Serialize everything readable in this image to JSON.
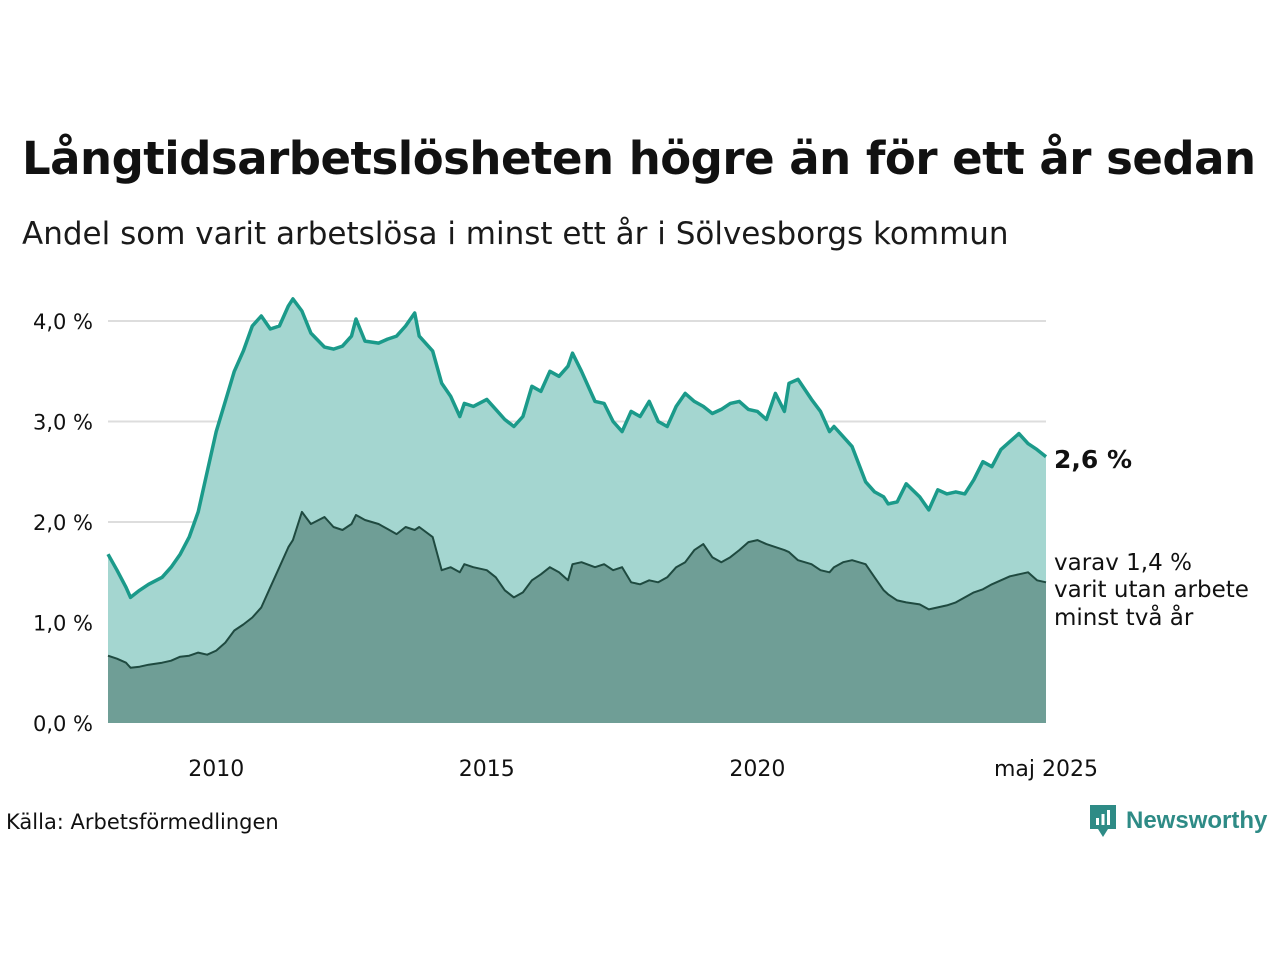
{
  "title": "Långtidsarbetslösheten högre än för ett år sedan",
  "subtitle": "Andel som varit arbetslösa i minst ett år i Sölvesborgs kommun",
  "source": "Källa: Arbetsförmedlingen",
  "brand": "Newsworthy",
  "end_labels": {
    "main": "2,6 %",
    "sub_lines": [
      "varav 1,4 %",
      "varit utan arbete",
      "minst två år"
    ]
  },
  "colors": {
    "main_line": "#1b9a8a",
    "main_fill": "#a4d6d0",
    "sub_line": "#1f4a40",
    "sub_fill": "#6f9e96",
    "grid": "#dddddd",
    "brand": "#2e8b86"
  },
  "chart_data": {
    "type": "area",
    "x_start": "2008-01",
    "x_end": "2025-05",
    "x_ticks": [
      {
        "label": "2010",
        "date": "2010-01"
      },
      {
        "label": "2015",
        "date": "2015-01"
      },
      {
        "label": "2020",
        "date": "2020-01"
      },
      {
        "label": "maj 2025",
        "date": "2025-05"
      }
    ],
    "y_ticks": [
      {
        "label": "0,0 %",
        "value": 0
      },
      {
        "label": "1,0 %",
        "value": 1
      },
      {
        "label": "2,0 %",
        "value": 2
      },
      {
        "label": "3,0 %",
        "value": 3
      },
      {
        "label": "4,0 %",
        "value": 4
      }
    ],
    "ylim": [
      0,
      4.4
    ],
    "grid": true,
    "series": [
      {
        "points": [
          [
            "2008-01",
            1.68
          ],
          [
            "2008-03",
            1.52
          ],
          [
            "2008-05",
            1.35
          ],
          [
            "2008-06",
            1.25
          ],
          [
            "2008-08",
            1.32
          ],
          [
            "2008-10",
            1.38
          ],
          [
            "2009-01",
            1.45
          ],
          [
            "2009-03",
            1.55
          ],
          [
            "2009-05",
            1.68
          ],
          [
            "2009-07",
            1.85
          ],
          [
            "2009-09",
            2.1
          ],
          [
            "2009-11",
            2.5
          ],
          [
            "2010-01",
            2.9
          ],
          [
            "2010-03",
            3.2
          ],
          [
            "2010-05",
            3.5
          ],
          [
            "2010-07",
            3.7
          ],
          [
            "2010-09",
            3.95
          ],
          [
            "2010-11",
            4.05
          ],
          [
            "2011-01",
            3.92
          ],
          [
            "2011-03",
            3.95
          ],
          [
            "2011-05",
            4.15
          ],
          [
            "2011-06",
            4.22
          ],
          [
            "2011-08",
            4.1
          ],
          [
            "2011-10",
            3.88
          ],
          [
            "2012-01",
            3.74
          ],
          [
            "2012-03",
            3.72
          ],
          [
            "2012-05",
            3.75
          ],
          [
            "2012-07",
            3.85
          ],
          [
            "2012-08",
            4.02
          ],
          [
            "2012-10",
            3.8
          ],
          [
            "2013-01",
            3.78
          ],
          [
            "2013-03",
            3.82
          ],
          [
            "2013-05",
            3.85
          ],
          [
            "2013-07",
            3.95
          ],
          [
            "2013-09",
            4.08
          ],
          [
            "2013-10",
            3.85
          ],
          [
            "2014-01",
            3.7
          ],
          [
            "2014-03",
            3.38
          ],
          [
            "2014-05",
            3.25
          ],
          [
            "2014-07",
            3.05
          ],
          [
            "2014-08",
            3.18
          ],
          [
            "2014-10",
            3.15
          ],
          [
            "2015-01",
            3.22
          ],
          [
            "2015-03",
            3.12
          ],
          [
            "2015-05",
            3.02
          ],
          [
            "2015-07",
            2.95
          ],
          [
            "2015-09",
            3.05
          ],
          [
            "2015-11",
            3.35
          ],
          [
            "2016-01",
            3.3
          ],
          [
            "2016-03",
            3.5
          ],
          [
            "2016-05",
            3.45
          ],
          [
            "2016-07",
            3.55
          ],
          [
            "2016-08",
            3.68
          ],
          [
            "2016-10",
            3.5
          ],
          [
            "2017-01",
            3.2
          ],
          [
            "2017-03",
            3.18
          ],
          [
            "2017-05",
            3.0
          ],
          [
            "2017-07",
            2.9
          ],
          [
            "2017-09",
            3.1
          ],
          [
            "2017-11",
            3.05
          ],
          [
            "2018-01",
            3.2
          ],
          [
            "2018-03",
            3.0
          ],
          [
            "2018-05",
            2.95
          ],
          [
            "2018-07",
            3.15
          ],
          [
            "2018-09",
            3.28
          ],
          [
            "2018-11",
            3.2
          ],
          [
            "2019-01",
            3.15
          ],
          [
            "2019-03",
            3.08
          ],
          [
            "2019-05",
            3.12
          ],
          [
            "2019-07",
            3.18
          ],
          [
            "2019-09",
            3.2
          ],
          [
            "2019-11",
            3.12
          ],
          [
            "2020-01",
            3.1
          ],
          [
            "2020-03",
            3.02
          ],
          [
            "2020-05",
            3.28
          ],
          [
            "2020-07",
            3.1
          ],
          [
            "2020-08",
            3.38
          ],
          [
            "2020-10",
            3.42
          ],
          [
            "2021-01",
            3.22
          ],
          [
            "2021-03",
            3.1
          ],
          [
            "2021-05",
            2.9
          ],
          [
            "2021-06",
            2.95
          ],
          [
            "2021-08",
            2.85
          ],
          [
            "2021-10",
            2.75
          ],
          [
            "2022-01",
            2.4
          ],
          [
            "2022-03",
            2.3
          ],
          [
            "2022-05",
            2.25
          ],
          [
            "2022-06",
            2.18
          ],
          [
            "2022-08",
            2.2
          ],
          [
            "2022-10",
            2.38
          ],
          [
            "2023-01",
            2.25
          ],
          [
            "2023-03",
            2.12
          ],
          [
            "2023-05",
            2.32
          ],
          [
            "2023-07",
            2.28
          ],
          [
            "2023-09",
            2.3
          ],
          [
            "2023-11",
            2.28
          ],
          [
            "2024-01",
            2.42
          ],
          [
            "2024-03",
            2.6
          ],
          [
            "2024-05",
            2.55
          ],
          [
            "2024-07",
            2.72
          ],
          [
            "2024-09",
            2.8
          ],
          [
            "2024-11",
            2.88
          ],
          [
            "2025-01",
            2.78
          ],
          [
            "2025-03",
            2.72
          ],
          [
            "2025-05",
            2.65
          ]
        ]
      },
      {
        "points": [
          [
            "2008-01",
            0.67
          ],
          [
            "2008-03",
            0.64
          ],
          [
            "2008-05",
            0.6
          ],
          [
            "2008-06",
            0.55
          ],
          [
            "2008-08",
            0.56
          ],
          [
            "2008-10",
            0.58
          ],
          [
            "2009-01",
            0.6
          ],
          [
            "2009-03",
            0.62
          ],
          [
            "2009-05",
            0.66
          ],
          [
            "2009-07",
            0.67
          ],
          [
            "2009-09",
            0.7
          ],
          [
            "2009-11",
            0.68
          ],
          [
            "2010-01",
            0.72
          ],
          [
            "2010-03",
            0.8
          ],
          [
            "2010-05",
            0.92
          ],
          [
            "2010-07",
            0.98
          ],
          [
            "2010-09",
            1.05
          ],
          [
            "2010-11",
            1.15
          ],
          [
            "2011-01",
            1.35
          ],
          [
            "2011-03",
            1.55
          ],
          [
            "2011-05",
            1.75
          ],
          [
            "2011-06",
            1.82
          ],
          [
            "2011-08",
            2.1
          ],
          [
            "2011-10",
            1.98
          ],
          [
            "2012-01",
            2.05
          ],
          [
            "2012-03",
            1.95
          ],
          [
            "2012-05",
            1.92
          ],
          [
            "2012-07",
            1.98
          ],
          [
            "2012-08",
            2.07
          ],
          [
            "2012-10",
            2.02
          ],
          [
            "2013-01",
            1.98
          ],
          [
            "2013-03",
            1.93
          ],
          [
            "2013-05",
            1.88
          ],
          [
            "2013-07",
            1.95
          ],
          [
            "2013-09",
            1.92
          ],
          [
            "2013-10",
            1.95
          ],
          [
            "2014-01",
            1.85
          ],
          [
            "2014-03",
            1.52
          ],
          [
            "2014-05",
            1.55
          ],
          [
            "2014-07",
            1.5
          ],
          [
            "2014-08",
            1.58
          ],
          [
            "2014-10",
            1.55
          ],
          [
            "2015-01",
            1.52
          ],
          [
            "2015-03",
            1.45
          ],
          [
            "2015-05",
            1.32
          ],
          [
            "2015-07",
            1.25
          ],
          [
            "2015-09",
            1.3
          ],
          [
            "2015-11",
            1.42
          ],
          [
            "2016-01",
            1.48
          ],
          [
            "2016-03",
            1.55
          ],
          [
            "2016-05",
            1.5
          ],
          [
            "2016-07",
            1.42
          ],
          [
            "2016-08",
            1.58
          ],
          [
            "2016-10",
            1.6
          ],
          [
            "2017-01",
            1.55
          ],
          [
            "2017-03",
            1.58
          ],
          [
            "2017-05",
            1.52
          ],
          [
            "2017-07",
            1.55
          ],
          [
            "2017-09",
            1.4
          ],
          [
            "2017-11",
            1.38
          ],
          [
            "2018-01",
            1.42
          ],
          [
            "2018-03",
            1.4
          ],
          [
            "2018-05",
            1.45
          ],
          [
            "2018-07",
            1.55
          ],
          [
            "2018-09",
            1.6
          ],
          [
            "2018-11",
            1.72
          ],
          [
            "2019-01",
            1.78
          ],
          [
            "2019-03",
            1.65
          ],
          [
            "2019-05",
            1.6
          ],
          [
            "2019-07",
            1.65
          ],
          [
            "2019-09",
            1.72
          ],
          [
            "2019-11",
            1.8
          ],
          [
            "2020-01",
            1.82
          ],
          [
            "2020-03",
            1.78
          ],
          [
            "2020-05",
            1.75
          ],
          [
            "2020-07",
            1.72
          ],
          [
            "2020-08",
            1.7
          ],
          [
            "2020-10",
            1.62
          ],
          [
            "2021-01",
            1.58
          ],
          [
            "2021-03",
            1.52
          ],
          [
            "2021-05",
            1.5
          ],
          [
            "2021-06",
            1.55
          ],
          [
            "2021-08",
            1.6
          ],
          [
            "2021-10",
            1.62
          ],
          [
            "2022-01",
            1.58
          ],
          [
            "2022-03",
            1.45
          ],
          [
            "2022-05",
            1.32
          ],
          [
            "2022-06",
            1.28
          ],
          [
            "2022-08",
            1.22
          ],
          [
            "2022-10",
            1.2
          ],
          [
            "2023-01",
            1.18
          ],
          [
            "2023-03",
            1.13
          ],
          [
            "2023-05",
            1.15
          ],
          [
            "2023-07",
            1.17
          ],
          [
            "2023-09",
            1.2
          ],
          [
            "2023-11",
            1.25
          ],
          [
            "2024-01",
            1.3
          ],
          [
            "2024-03",
            1.33
          ],
          [
            "2024-05",
            1.38
          ],
          [
            "2024-07",
            1.42
          ],
          [
            "2024-09",
            1.46
          ],
          [
            "2024-11",
            1.48
          ],
          [
            "2025-01",
            1.5
          ],
          [
            "2025-03",
            1.42
          ],
          [
            "2025-05",
            1.4
          ]
        ]
      }
    ]
  }
}
